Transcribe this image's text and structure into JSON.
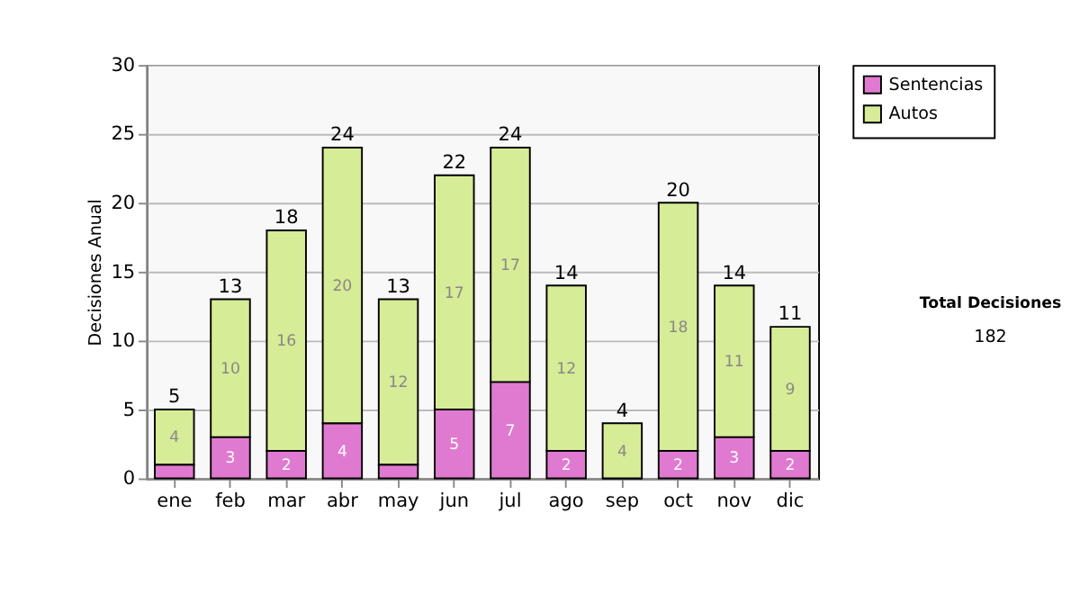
{
  "chart_data": {
    "type": "bar",
    "stacked": true,
    "ylabel": "Decisiones Anual",
    "categories": [
      "ene",
      "feb",
      "mar",
      "abr",
      "may",
      "jun",
      "jul",
      "ago",
      "sep",
      "oct",
      "nov",
      "dic"
    ],
    "series": [
      {
        "name": "Sentencias",
        "color": "#e07ad0",
        "values": [
          1,
          3,
          2,
          4,
          1,
          5,
          7,
          2,
          0,
          2,
          3,
          2
        ],
        "value_labels": [
          null,
          "3",
          "2",
          "4",
          null,
          "5",
          "7",
          "2",
          null,
          "2",
          "3",
          "2"
        ]
      },
      {
        "name": "Autos",
        "color": "#d6ec96",
        "values": [
          4,
          10,
          16,
          20,
          12,
          17,
          17,
          12,
          4,
          18,
          11,
          9
        ],
        "value_labels": [
          "4",
          "10",
          "16",
          "20",
          "12",
          "17",
          "17",
          "12",
          "4",
          "18",
          "11",
          "9"
        ]
      }
    ],
    "totals": [
      "5",
      "13",
      "18",
      "24",
      "13",
      "22",
      "24",
      "14",
      "4",
      "20",
      "14",
      "11"
    ],
    "ylim": [
      0,
      30
    ],
    "yticks": [
      0,
      5,
      10,
      15,
      20,
      25,
      30
    ],
    "grid": "y",
    "legend": "right",
    "annotations": [
      "Total Decisiones",
      "182"
    ]
  }
}
